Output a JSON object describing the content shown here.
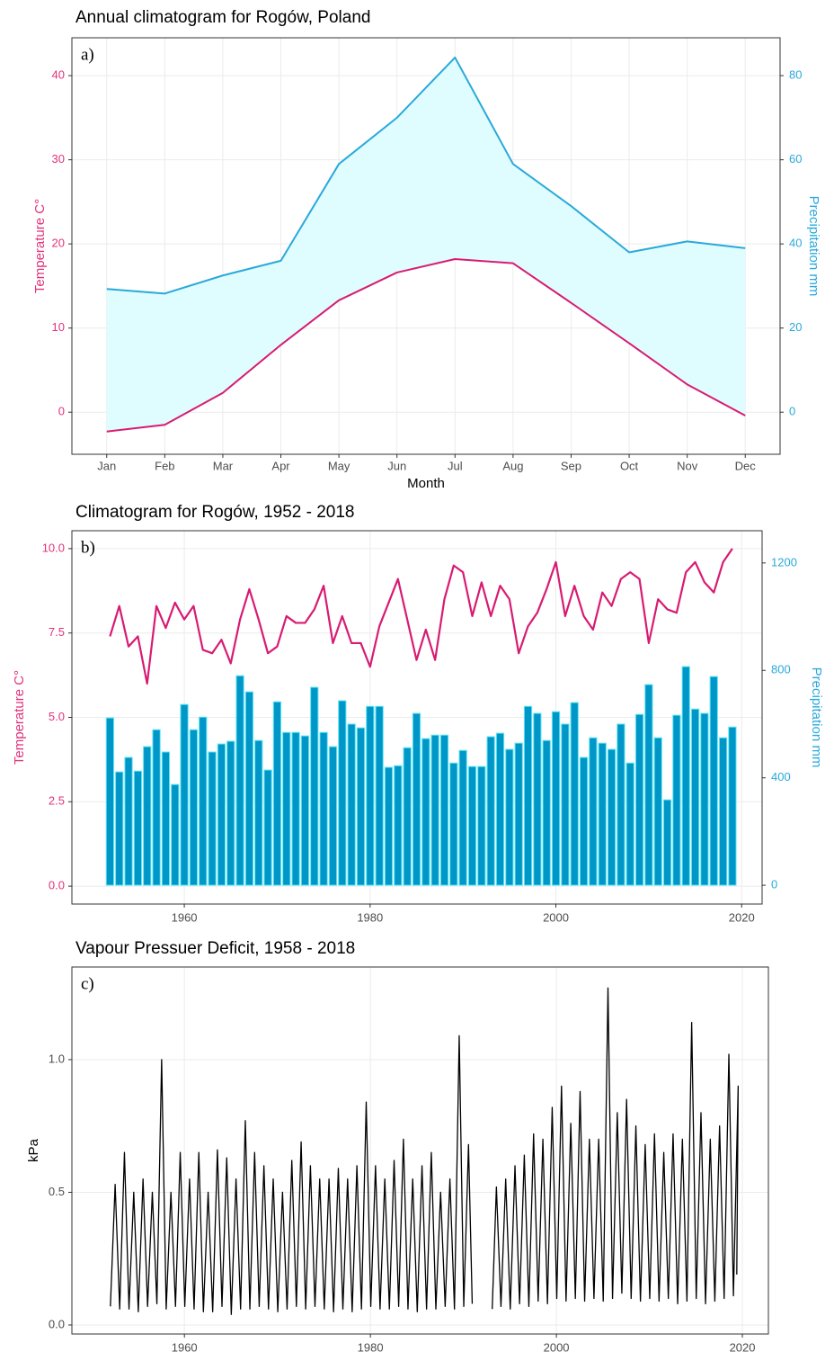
{
  "chart_data": [
    {
      "type": "area",
      "title": "Annual climatogram for Rogów, Poland",
      "annotation": "a)",
      "xlabel": "Month",
      "ylabel": "Temperature C°",
      "y2label": "Precipitation mm",
      "yaxis_color": "#e0337a",
      "y2axis_color": "#29a9dc",
      "grid": true,
      "categories": [
        "Jan",
        "Feb",
        "Mar",
        "Apr",
        "May",
        "Jun",
        "Jul",
        "Aug",
        "Sep",
        "Oct",
        "Nov",
        "Dec"
      ],
      "series": [
        {
          "color": "#d81b72",
          "values": [
            -2.3,
            -1.5,
            2.3,
            8.0,
            13.3,
            16.6,
            18.2,
            17.7,
            13.0,
            8.2,
            3.3,
            -0.4
          ]
        },
        {
          "axis": "y2",
          "color": "#2aa9d9",
          "fill": "#dffcff",
          "values": [
            29.3,
            28.2,
            32.5,
            36.0,
            59.0,
            70.0,
            84.3,
            59.0,
            49.0,
            38.0,
            40.6,
            39.0
          ]
        }
      ],
      "ylim": [
        -5.0,
        44.5
      ],
      "yticks": [
        0,
        10,
        20,
        30,
        40
      ],
      "y2lim": [
        -10,
        89
      ],
      "y2ticks": [
        0,
        20,
        40,
        60,
        80
      ]
    },
    {
      "type": "combo",
      "title": "Climatogram for Rogów, 1952 - 2018",
      "annotation": "b)",
      "ylabel": "Temperature C°",
      "y2label": "Precipitation mm",
      "yaxis_color": "#e0337a",
      "y2axis_color": "#29a9dc",
      "grid": true,
      "x": [
        1952,
        1953,
        1954,
        1955,
        1956,
        1957,
        1958,
        1959,
        1960,
        1961,
        1962,
        1963,
        1964,
        1965,
        1966,
        1967,
        1968,
        1969,
        1970,
        1971,
        1972,
        1973,
        1974,
        1975,
        1976,
        1977,
        1978,
        1979,
        1980,
        1981,
        1982,
        1983,
        1984,
        1985,
        1986,
        1987,
        1988,
        1989,
        1990,
        1991,
        1992,
        1993,
        1994,
        1995,
        1996,
        1997,
        1998,
        1999,
        2000,
        2001,
        2002,
        2003,
        2004,
        2005,
        2006,
        2007,
        2008,
        2009,
        2010,
        2011,
        2012,
        2013,
        2014,
        2015,
        2016,
        2017,
        2018,
        2019
      ],
      "series": [
        {
          "type": "bar",
          "axis": "y2",
          "color": "#0096c7",
          "edgecolor": "#5ee6f5",
          "values": [
            623,
            422,
            476,
            425,
            516,
            579,
            496,
            375,
            673,
            579,
            626,
            496,
            526,
            536,
            780,
            720,
            539,
            429,
            683,
            569,
            569,
            556,
            737,
            569,
            516,
            687,
            600,
            586,
            666,
            666,
            439,
            445,
            512,
            640,
            546,
            559,
            559,
            455,
            502,
            442,
            442,
            553,
            566,
            506,
            529,
            666,
            640,
            539,
            646,
            600,
            680,
            476,
            549,
            529,
            506,
            600,
            455,
            636,
            747,
            549,
            318,
            633,
            814,
            656,
            640,
            777,
            549,
            589
          ]
        },
        {
          "type": "line",
          "color": "#d81b72",
          "values": [
            7.4,
            8.3,
            7.1,
            7.4,
            6.0,
            8.3,
            7.65,
            8.4,
            7.9,
            8.3,
            7.0,
            6.9,
            7.3,
            6.6,
            7.9,
            8.8,
            7.9,
            6.9,
            7.1,
            8.0,
            7.8,
            7.8,
            8.2,
            8.9,
            7.2,
            8.0,
            7.2,
            7.2,
            6.5,
            7.7,
            8.4,
            9.1,
            7.9,
            6.7,
            7.6,
            6.7,
            8.5,
            9.5,
            9.3,
            8.0,
            9.0,
            8.0,
            8.9,
            8.5,
            6.9,
            7.7,
            8.1,
            8.8,
            9.6,
            8.0,
            8.9,
            8.0,
            7.6,
            8.7,
            8.3,
            9.1,
            9.3,
            9.1,
            7.2,
            8.5,
            8.2,
            8.1,
            9.3,
            9.6,
            9.0,
            8.7,
            9.6,
            10.0
          ]
        }
      ],
      "xlim": [
        1947.9,
        2022.2
      ],
      "xticks": [
        1960,
        1980,
        2000,
        2020
      ],
      "ylim": [
        -0.53,
        10.53
      ],
      "yticks": [
        {
          "value": 0,
          "label": "0.0"
        },
        2.5,
        {
          "value": 5,
          "label": "5.0"
        },
        7.5,
        {
          "value": 10,
          "label": "10.0"
        }
      ],
      "y2lim": [
        -70,
        1320
      ],
      "y2ticks": [
        0,
        400,
        800,
        1200
      ]
    },
    {
      "type": "line",
      "title": "Vapour Pressuer Deficit, 1958 - 2018",
      "annotation": "c)",
      "ylabel": "kPa",
      "color": "#000000",
      "grid": true,
      "x": [
        1952.04,
        1952.55,
        1953.04,
        1953.55,
        1954.04,
        1954.55,
        1955.04,
        1955.55,
        1956.04,
        1956.55,
        1957.04,
        1957.55,
        1958.04,
        1958.55,
        1959.04,
        1959.55,
        1960.04,
        1960.55,
        1961.04,
        1961.55,
        1962.04,
        1962.55,
        1963.04,
        1963.55,
        1964.04,
        1964.55,
        1965.04,
        1965.55,
        1966.04,
        1966.55,
        1967.04,
        1967.55,
        1968.04,
        1968.55,
        1969.04,
        1969.55,
        1970.04,
        1970.55,
        1971.04,
        1971.55,
        1972.04,
        1972.55,
        1973.04,
        1973.55,
        1974.04,
        1974.55,
        1975.04,
        1975.55,
        1976.04,
        1976.55,
        1977.04,
        1977.55,
        1978.04,
        1978.55,
        1979.04,
        1979.55,
        1980.04,
        1980.55,
        1981.04,
        1981.55,
        1982.04,
        1982.55,
        1983.04,
        1983.55,
        1984.04,
        1984.55,
        1985.04,
        1985.55,
        1986.04,
        1986.55,
        1987.04,
        1987.55,
        1988.04,
        1988.55,
        1989.04,
        1989.55,
        1990.04,
        1990.55,
        1990.95,
        1992.0,
        1993.1,
        1993.55,
        1994.04,
        1994.55,
        1995.04,
        1995.55,
        1996.04,
        1996.55,
        1997.04,
        1997.55,
        1998.04,
        1998.55,
        1999.04,
        1999.55,
        2000.04,
        2000.55,
        2001.04,
        2001.55,
        2002.04,
        2002.55,
        2003.04,
        2003.55,
        2004.04,
        2004.55,
        2005.04,
        2005.55,
        2006.04,
        2006.55,
        2007.04,
        2007.55,
        2008.04,
        2008.55,
        2009.04,
        2009.55,
        2010.04,
        2010.55,
        2011.04,
        2011.55,
        2012.04,
        2012.55,
        2013.04,
        2013.55,
        2014.04,
        2014.55,
        2015.04,
        2015.55,
        2016.04,
        2016.55,
        2017.04,
        2017.55,
        2018.04,
        2018.55,
        2019.04,
        2019.55,
        2019.4
      ],
      "values": [
        0.07,
        0.53,
        0.06,
        0.65,
        0.06,
        0.5,
        0.05,
        0.55,
        0.07,
        0.5,
        0.08,
        1.0,
        0.06,
        0.5,
        0.07,
        0.65,
        0.07,
        0.55,
        0.06,
        0.65,
        0.05,
        0.5,
        0.05,
        0.66,
        0.07,
        0.63,
        0.04,
        0.55,
        0.06,
        0.77,
        0.06,
        0.65,
        0.07,
        0.6,
        0.06,
        0.55,
        0.05,
        0.5,
        0.06,
        0.62,
        0.07,
        0.69,
        0.06,
        0.6,
        0.07,
        0.55,
        0.06,
        0.55,
        0.05,
        0.59,
        0.06,
        0.55,
        0.05,
        0.6,
        0.06,
        0.84,
        0.07,
        0.6,
        0.06,
        0.55,
        0.06,
        0.62,
        0.07,
        0.7,
        0.06,
        0.55,
        0.05,
        0.6,
        0.06,
        0.65,
        0.06,
        0.5,
        0.07,
        0.55,
        0.06,
        1.09,
        0.07,
        0.68,
        0.08,
        null,
        0.06,
        0.52,
        0.07,
        0.55,
        0.06,
        0.6,
        0.08,
        0.64,
        0.07,
        0.72,
        0.09,
        0.7,
        0.08,
        0.82,
        0.1,
        0.9,
        0.09,
        0.76,
        0.1,
        0.88,
        0.09,
        0.7,
        0.1,
        0.7,
        0.09,
        1.27,
        0.1,
        0.8,
        0.12,
        0.85,
        0.1,
        0.75,
        0.09,
        0.68,
        0.1,
        0.72,
        0.09,
        0.65,
        0.1,
        0.72,
        0.08,
        0.7,
        0.09,
        1.14,
        0.1,
        0.8,
        0.08,
        0.7,
        0.09,
        0.75,
        0.1,
        1.02,
        0.11,
        0.9,
        0.19
      ],
      "xlim": [
        1947.9,
        2022.8
      ],
      "xticks": [
        1960,
        1980,
        2000,
        2020
      ],
      "ylim": [
        -0.034,
        1.349
      ],
      "yticks": [
        {
          "value": 0,
          "label": "0.0"
        },
        0.5,
        {
          "value": 1,
          "label": "1.0"
        }
      ]
    }
  ]
}
